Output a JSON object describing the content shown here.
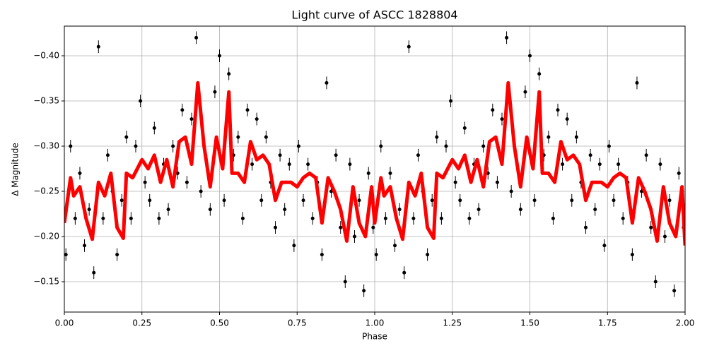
{
  "chart_data": {
    "type": "errorbar",
    "title": "Light curve of ASCC 1828804",
    "x_label": "Phase",
    "y_label": "Δ Magnitude",
    "xlim": [
      0,
      2
    ],
    "ylim": [
      -0.1164,
      -0.4328
    ],
    "xticks": [
      {
        "value": 0,
        "label": "0.00"
      },
      {
        "value": 0.25,
        "label": "0.25"
      },
      {
        "value": 0.5,
        "label": "0.50"
      },
      {
        "value": 0.75,
        "label": "0.75"
      },
      {
        "value": 1,
        "label": "1.00"
      },
      {
        "value": 1.25,
        "label": "1.25"
      },
      {
        "value": 1.5,
        "label": "1.50"
      },
      {
        "value": 1.75,
        "label": "1.75"
      },
      {
        "value": 2,
        "label": "2.00"
      }
    ],
    "yticks": [
      {
        "value": -0.4,
        "label": "−0.40"
      },
      {
        "value": -0.35,
        "label": "−0.35"
      },
      {
        "value": -0.3,
        "label": "−0.30"
      },
      {
        "value": -0.25,
        "label": "−0.25"
      },
      {
        "value": -0.2,
        "label": "−0.20"
      },
      {
        "value": -0.15,
        "label": "−0.15"
      }
    ],
    "grid": true,
    "points": {
      "color": "#000000",
      "yerr": 0.007,
      "x": [
        0.005,
        0.02,
        0.035,
        0.05,
        0.065,
        0.08,
        0.095,
        0.11,
        0.125,
        0.14,
        0.155,
        0.17,
        0.185,
        0.2,
        0.215,
        0.23,
        0.245,
        0.26,
        0.275,
        0.29,
        0.305,
        0.32,
        0.335,
        0.35,
        0.365,
        0.38,
        0.395,
        0.41,
        0.425,
        0.44,
        0.455,
        0.47,
        0.485,
        0.5,
        0.515,
        0.53,
        0.545,
        0.56,
        0.575,
        0.59,
        0.605,
        0.62,
        0.635,
        0.65,
        0.665,
        0.68,
        0.695,
        0.71,
        0.725,
        0.74,
        0.755,
        0.77,
        0.785,
        0.8,
        0.815,
        0.83,
        0.845,
        0.86,
        0.875,
        0.89,
        0.905,
        0.92,
        0.935,
        0.95,
        0.965,
        0.98,
        0.995,
        1.005,
        1.02,
        1.035,
        1.05,
        1.065,
        1.08,
        1.095,
        1.11,
        1.125,
        1.14,
        1.155,
        1.17,
        1.185,
        1.2,
        1.215,
        1.23,
        1.245,
        1.26,
        1.275,
        1.29,
        1.305,
        1.32,
        1.335,
        1.35,
        1.365,
        1.38,
        1.395,
        1.41,
        1.425,
        1.44,
        1.455,
        1.47,
        1.485,
        1.5,
        1.515,
        1.53,
        1.545,
        1.56,
        1.575,
        1.59,
        1.605,
        1.62,
        1.635,
        1.65,
        1.665,
        1.68,
        1.695,
        1.71,
        1.725,
        1.74,
        1.755,
        1.77,
        1.785,
        1.8,
        1.815,
        1.83,
        1.845,
        1.86,
        1.875,
        1.89,
        1.905,
        1.92,
        1.935,
        1.95,
        1.965,
        1.98,
        1.995
      ],
      "values": [
        -0.18,
        -0.3,
        -0.22,
        -0.27,
        -0.19,
        -0.23,
        -0.16,
        -0.41,
        -0.22,
        -0.29,
        -0.25,
        -0.18,
        -0.24,
        -0.31,
        -0.22,
        -0.3,
        -0.35,
        -0.26,
        -0.24,
        -0.32,
        -0.22,
        -0.28,
        -0.23,
        -0.3,
        -0.27,
        -0.34,
        -0.26,
        -0.33,
        -0.42,
        -0.25,
        -0.29,
        -0.23,
        -0.36,
        -0.4,
        -0.24,
        -0.38,
        -0.29,
        -0.31,
        -0.22,
        -0.34,
        -0.28,
        -0.33,
        -0.24,
        -0.31,
        -0.26,
        -0.21,
        -0.29,
        -0.23,
        -0.28,
        -0.19,
        -0.3,
        -0.24,
        -0.28,
        -0.22,
        -0.26,
        -0.18,
        -0.37,
        -0.25,
        -0.29,
        -0.21,
        -0.15,
        -0.28,
        -0.2,
        -0.24,
        -0.14,
        -0.27,
        -0.21,
        -0.18,
        -0.3,
        -0.22,
        -0.27,
        -0.19,
        -0.23,
        -0.16,
        -0.41,
        -0.22,
        -0.29,
        -0.25,
        -0.18,
        -0.24,
        -0.31,
        -0.22,
        -0.3,
        -0.35,
        -0.26,
        -0.24,
        -0.32,
        -0.22,
        -0.28,
        -0.23,
        -0.3,
        -0.27,
        -0.34,
        -0.26,
        -0.33,
        -0.42,
        -0.25,
        -0.29,
        -0.23,
        -0.36,
        -0.4,
        -0.24,
        -0.38,
        -0.29,
        -0.31,
        -0.22,
        -0.34,
        -0.28,
        -0.33,
        -0.24,
        -0.31,
        -0.26,
        -0.21,
        -0.29,
        -0.23,
        -0.28,
        -0.19,
        -0.3,
        -0.24,
        -0.28,
        -0.22,
        -0.26,
        -0.18,
        -0.37,
        -0.25,
        -0.29,
        -0.21,
        -0.15,
        -0.28,
        -0.2,
        -0.24,
        -0.14,
        -0.27,
        -0.21
      ]
    },
    "model": {
      "color": "#ff0000",
      "x": [
        0,
        0.02,
        0.03,
        0.05,
        0.07,
        0.09,
        0.11,
        0.13,
        0.15,
        0.17,
        0.19,
        0.2,
        0.22,
        0.25,
        0.27,
        0.29,
        0.31,
        0.33,
        0.35,
        0.37,
        0.39,
        0.41,
        0.43,
        0.45,
        0.47,
        0.49,
        0.51,
        0.53,
        0.54,
        0.56,
        0.58,
        0.6,
        0.62,
        0.64,
        0.66,
        0.68,
        0.7,
        0.73,
        0.75,
        0.77,
        0.79,
        0.81,
        0.83,
        0.85,
        0.87,
        0.89,
        0.91,
        0.93,
        0.95,
        0.97,
        0.99,
        1,
        1.02,
        1.03,
        1.05,
        1.07,
        1.09,
        1.11,
        1.13,
        1.15,
        1.17,
        1.19,
        1.2,
        1.22,
        1.25,
        1.27,
        1.29,
        1.31,
        1.33,
        1.35,
        1.37,
        1.39,
        1.41,
        1.43,
        1.45,
        1.47,
        1.49,
        1.51,
        1.53,
        1.54,
        1.56,
        1.58,
        1.6,
        1.62,
        1.64,
        1.66,
        1.68,
        1.7,
        1.73,
        1.75,
        1.77,
        1.79,
        1.81,
        1.83,
        1.85,
        1.87,
        1.89,
        1.91,
        1.93,
        1.95,
        1.97,
        1.99,
        2
      ],
      "values": [
        -0.215,
        -0.265,
        -0.245,
        -0.255,
        -0.22,
        -0.197,
        -0.26,
        -0.245,
        -0.27,
        -0.21,
        -0.198,
        -0.27,
        -0.265,
        -0.285,
        -0.275,
        -0.29,
        -0.26,
        -0.285,
        -0.255,
        -0.305,
        -0.31,
        -0.28,
        -0.37,
        -0.3,
        -0.255,
        -0.31,
        -0.275,
        -0.36,
        -0.27,
        -0.27,
        -0.26,
        -0.305,
        -0.285,
        -0.29,
        -0.28,
        -0.24,
        -0.26,
        -0.26,
        -0.255,
        -0.265,
        -0.27,
        -0.265,
        -0.215,
        -0.265,
        -0.25,
        -0.23,
        -0.195,
        -0.255,
        -0.215,
        -0.2,
        -0.255,
        -0.215,
        -0.265,
        -0.245,
        -0.255,
        -0.22,
        -0.197,
        -0.26,
        -0.245,
        -0.27,
        -0.21,
        -0.198,
        -0.27,
        -0.265,
        -0.285,
        -0.275,
        -0.29,
        -0.26,
        -0.285,
        -0.255,
        -0.305,
        -0.31,
        -0.28,
        -0.37,
        -0.3,
        -0.255,
        -0.31,
        -0.275,
        -0.36,
        -0.27,
        -0.27,
        -0.26,
        -0.305,
        -0.285,
        -0.29,
        -0.28,
        -0.24,
        -0.26,
        -0.26,
        -0.255,
        -0.265,
        -0.27,
        -0.265,
        -0.215,
        -0.265,
        -0.25,
        -0.23,
        -0.195,
        -0.255,
        -0.215,
        -0.2,
        -0.255,
        -0.19
      ]
    }
  }
}
